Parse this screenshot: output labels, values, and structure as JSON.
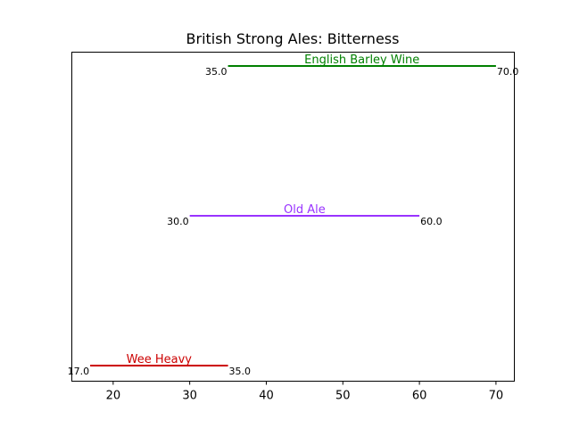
{
  "chart_data": {
    "type": "range",
    "title": "British Strong Ales: Bitterness",
    "xlabel": "",
    "ylabel": "",
    "xlim": [
      14.6,
      72.4
    ],
    "xticks": [
      20,
      30,
      40,
      50,
      60,
      70
    ],
    "grid": false,
    "y_axis_ticks": false,
    "series": [
      {
        "name": "English Barley Wine",
        "start": 35.0,
        "end": 70.0,
        "start_label": "35.0",
        "end_label": "70.0",
        "color": "#008000"
      },
      {
        "name": "Old Ale",
        "start": 30.0,
        "end": 60.0,
        "start_label": "30.0",
        "end_label": "60.0",
        "color": "#9933ff"
      },
      {
        "name": "Wee Heavy",
        "start": 17.0,
        "end": 35.0,
        "start_label": "17.0",
        "end_label": "35.0",
        "color": "#cc0000"
      }
    ]
  }
}
